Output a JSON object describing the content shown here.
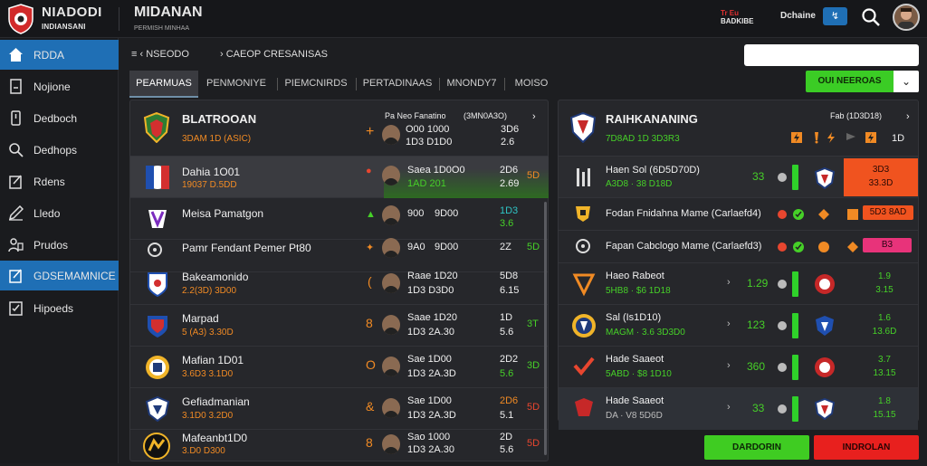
{
  "header": {
    "brand_title": "NIADODI",
    "brand_sub": "INDIANSANI",
    "app_title": "MIDANAN",
    "app_sub": "PERMISH MINHAA",
    "badge_top": "Tr Eu",
    "badge_bottom": "BADKIBE",
    "user_text": "Dchaine",
    "action_icon": "↯"
  },
  "sidebar": {
    "items": [
      {
        "label": "RDDA",
        "icon": "home-icon"
      },
      {
        "label": "Nojione",
        "icon": "page-icon"
      },
      {
        "label": "Dedboch",
        "icon": "phone-icon"
      },
      {
        "label": "Dedhops",
        "icon": "search-icon"
      },
      {
        "label": "Rdens",
        "icon": "edit-icon"
      },
      {
        "label": "Lledo",
        "icon": "pencil-icon"
      },
      {
        "label": "Prudos",
        "icon": "users-icon"
      },
      {
        "label": "GDSEMAMNICE",
        "icon": "edit-icon"
      },
      {
        "label": "Hipoeds",
        "icon": "checklist-icon"
      }
    ]
  },
  "breadcrumb": {
    "first": "NSEODO",
    "second": "CAEOP CRESANISAS"
  },
  "tabs": [
    "PEARMUAS",
    "PENMONIYE",
    "PIEMCNIRDS",
    "PERTADINAAS",
    "MNONDY7",
    "MOISO"
  ],
  "filter": {
    "label": "OUI NEEROAS",
    "caret": "⌄"
  },
  "left_panel": {
    "header": {
      "team": "BLATROOAN",
      "meta": "3DAM 1D (ASIC)",
      "col_label": "Pa Neo Fanatino",
      "col_label2": "(3MN0A3O)",
      "arrow": "+",
      "v1": "O00 1000",
      "v2": "1D3 D1D0",
      "s1": "3D6",
      "s2": "2.6",
      "chev": "›"
    },
    "rows": [
      {
        "team": "Dahia 1O01",
        "sub": "19037 D.5DD",
        "c1": "Saea 1D0O0",
        "c2": "1AD 201",
        "s1": "2D6",
        "s2": "2.69",
        "t": "5D",
        "highlight": true,
        "arrow": "●"
      },
      {
        "team": "Meisa Pamatgon",
        "sub": "",
        "c1": "900",
        "c2": "9D00",
        "s1": "1D3",
        "s2": "3.6",
        "t": "",
        "highlight": false,
        "arrow": "▲"
      },
      {
        "team": "Pamr Fendant Pemer Pt80",
        "sub": "",
        "c1": "9A0",
        "c2": "9D00",
        "s1": "2Z",
        "s2": "",
        "t": "5D",
        "highlight": false,
        "arrow": "✦"
      },
      {
        "team": "Bakeamonido",
        "sub": "2.2(3D) 3D00",
        "c1": "Raae 1D20",
        "c2": "1D3 D3D0",
        "s1": "5D8",
        "s2": "6.15",
        "t": "",
        "highlight": false,
        "arrow": "("
      },
      {
        "team": "Marpad",
        "sub": "5 (A3) 3.30D",
        "c1": "Saae 1D20",
        "c2": "1D3 2A.30",
        "s1": "1D",
        "s2": "5.6",
        "t": "3T",
        "highlight": false,
        "arrow": "8"
      },
      {
        "team": "Mafian 1D01",
        "sub": "3.6D3 3.1D0",
        "c1": "Sae 1D00",
        "c2": "1D3 2A.3D",
        "s1": "2D2",
        "s2": "5.6",
        "t": "3D",
        "highlight": false,
        "arrow": "O"
      },
      {
        "team": "Gefiadmanian",
        "sub": "3.1D0 3.2D0",
        "c1": "Sae 1D00",
        "c2": "1D3 2A.3D",
        "s1": "2D6",
        "s2": "5.1",
        "t": "5D",
        "highlight": false,
        "arrow": "&"
      },
      {
        "team": "Mafeanbt1D0",
        "sub": "3.D0 D300",
        "c1": "Sao 1000",
        "c2": "1D3 2A.30",
        "s1": "2D",
        "s2": "5.6",
        "t": "5D",
        "highlight": false,
        "arrow": "8"
      }
    ]
  },
  "right_panel": {
    "header": {
      "team": "RAIHKANANING",
      "meta": "7D8AD 1D 3D3R3",
      "col_label": "Fab (1D3D18)",
      "chev": "›",
      "n": "1D"
    },
    "rows": [
      {
        "team": "Haen Sol (6D5D70D)",
        "sub": "A3D8 · 38 D18D",
        "v": "33",
        "odd1": "3D3",
        "odd2": "33.3D",
        "box": "orange"
      },
      {
        "team": "Fodan Fnidahna Mame (Carlaefd4)",
        "sub": "",
        "v": "",
        "odd1": "5D3 8AD",
        "odd2": "",
        "box": "orangesmall"
      },
      {
        "team": "Fapan Cabclogo Mame (Carlaefd3)",
        "sub": "",
        "v": "",
        "odd1": "B3",
        "odd2": "",
        "box": "pink"
      },
      {
        "team": "Haeo Rabeot",
        "sub": "5HB8 · $6 1D18",
        "v": "1.29",
        "odd1": "1.9",
        "odd2": "3.15",
        "box": ""
      },
      {
        "team": "Sal (Is1D10)",
        "sub": "MAGM · 3.6 3D3D0",
        "v": "123",
        "odd1": "1.6",
        "odd2": "13.6D",
        "box": ""
      },
      {
        "team": "Hade Saaeot",
        "sub": "5ABD · $8 1D10",
        "v": "360",
        "odd1": "3.7",
        "odd2": "13.15",
        "box": ""
      },
      {
        "team": "Hade Saaeot",
        "sub": "DA · V8 5D6D",
        "v": "33",
        "odd1": "1.8",
        "odd2": "15.15",
        "box": ""
      }
    ]
  },
  "buttons": {
    "confirm": "DARDORIN",
    "cancel": "INDROLAN"
  }
}
